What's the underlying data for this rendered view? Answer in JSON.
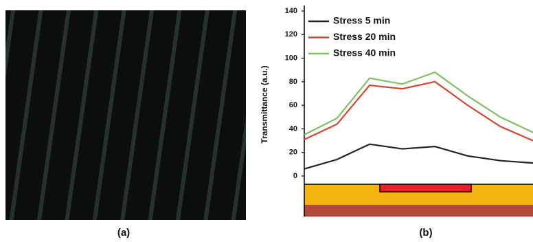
{
  "captions": [
    "(a)",
    "(b)"
  ],
  "chart_data": {
    "type": "line",
    "y_label": "Transmittance (a.u.)",
    "categories": [
      null,
      null,
      null,
      null,
      null,
      null,
      null,
      null
    ],
    "series": [
      {
        "name": "Stress 5 min",
        "color": "#222222",
        "values": [
          6,
          14,
          27,
          23,
          25,
          17,
          13,
          11
        ]
      },
      {
        "name": "Stress 20 min",
        "color": "#d2452e",
        "values": [
          31,
          44,
          77,
          74,
          80,
          60,
          42,
          30
        ]
      },
      {
        "name": "Stress 40 min",
        "color": "#7fc064",
        "values": [
          35,
          49,
          83,
          78,
          88,
          68,
          50,
          37
        ]
      }
    ],
    "ylim": [
      0,
      140
    ],
    "yticks": [
      0,
      20,
      40,
      60,
      80,
      100,
      120,
      140
    ],
    "legend": "upper left",
    "grid": false
  }
}
